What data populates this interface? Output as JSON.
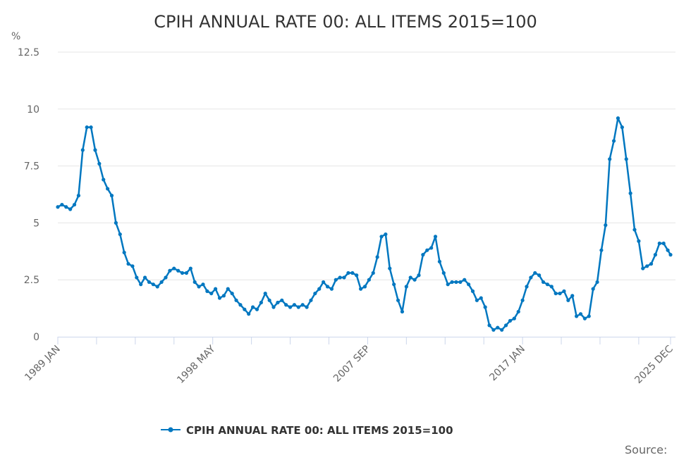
{
  "chart_data": {
    "type": "line",
    "title": "CPIH ANNUAL RATE 00: ALL ITEMS 2015=100",
    "ylabel": "%",
    "xlabel": "",
    "ylim": [
      0,
      12.5
    ],
    "yticks": [
      "0",
      "2.5",
      "5",
      "7.5",
      "10",
      "12.5"
    ],
    "xticks": [
      "1989 JAN",
      "1998 MAY",
      "2007 SEP",
      "2017 JAN",
      "2025 DEC"
    ],
    "grid": true,
    "legend_position": "bottom",
    "color": "#0077c0",
    "series": [
      {
        "name": "CPIH ANNUAL RATE 00: ALL ITEMS 2015=100",
        "x": [
          "1989-01",
          "1989-04",
          "1989-07",
          "1989-10",
          "1990-01",
          "1990-04",
          "1990-07",
          "1990-10",
          "1991-01",
          "1991-04",
          "1991-07",
          "1991-10",
          "1992-01",
          "1992-04",
          "1992-07",
          "1992-10",
          "1993-01",
          "1993-04",
          "1993-07",
          "1993-10",
          "1994-01",
          "1994-04",
          "1994-07",
          "1994-10",
          "1995-01",
          "1995-04",
          "1995-07",
          "1995-10",
          "1996-01",
          "1996-04",
          "1996-07",
          "1996-10",
          "1997-01",
          "1997-04",
          "1997-07",
          "1997-10",
          "1998-01",
          "1998-04",
          "1998-07",
          "1998-10",
          "1999-01",
          "1999-04",
          "1999-07",
          "1999-10",
          "2000-01",
          "2000-04",
          "2000-07",
          "2000-10",
          "2001-01",
          "2001-04",
          "2001-07",
          "2001-10",
          "2002-01",
          "2002-04",
          "2002-07",
          "2002-10",
          "2003-01",
          "2003-04",
          "2003-07",
          "2003-10",
          "2004-01",
          "2004-04",
          "2004-07",
          "2004-10",
          "2005-01",
          "2005-04",
          "2005-07",
          "2005-10",
          "2006-01",
          "2006-04",
          "2006-07",
          "2006-10",
          "2007-01",
          "2007-04",
          "2007-07",
          "2007-10",
          "2008-01",
          "2008-04",
          "2008-07",
          "2008-10",
          "2009-01",
          "2009-04",
          "2009-07",
          "2009-10",
          "2010-01",
          "2010-04",
          "2010-07",
          "2010-10",
          "2011-01",
          "2011-04",
          "2011-07",
          "2011-10",
          "2012-01",
          "2012-04",
          "2012-07",
          "2012-10",
          "2013-01",
          "2013-04",
          "2013-07",
          "2013-10",
          "2014-01",
          "2014-04",
          "2014-07",
          "2014-10",
          "2015-01",
          "2015-04",
          "2015-07",
          "2015-10",
          "2016-01",
          "2016-04",
          "2016-07",
          "2016-10",
          "2017-01",
          "2017-04",
          "2017-07",
          "2017-10",
          "2018-01",
          "2018-04",
          "2018-07",
          "2018-10",
          "2019-01",
          "2019-04",
          "2019-07",
          "2019-10",
          "2020-01",
          "2020-04",
          "2020-07",
          "2020-10",
          "2021-01",
          "2021-04",
          "2021-07",
          "2021-10",
          "2022-01",
          "2022-04",
          "2022-07",
          "2022-10",
          "2023-01",
          "2023-04",
          "2023-07",
          "2023-10",
          "2024-01",
          "2024-04",
          "2024-07",
          "2024-10",
          "2025-01",
          "2025-04",
          "2025-07",
          "2025-10",
          "2025-12"
        ],
        "values": [
          5.7,
          5.8,
          5.7,
          5.6,
          5.8,
          6.2,
          8.2,
          9.2,
          9.2,
          8.2,
          7.6,
          6.9,
          6.5,
          6.2,
          5.0,
          4.5,
          3.7,
          3.2,
          3.1,
          2.6,
          2.3,
          2.6,
          2.4,
          2.3,
          2.2,
          2.4,
          2.6,
          2.9,
          3.0,
          2.9,
          2.8,
          2.8,
          3.0,
          2.4,
          2.2,
          2.3,
          2.0,
          1.9,
          2.1,
          1.7,
          1.8,
          2.1,
          1.9,
          1.6,
          1.4,
          1.2,
          1.0,
          1.3,
          1.2,
          1.5,
          1.9,
          1.6,
          1.3,
          1.5,
          1.6,
          1.4,
          1.3,
          1.4,
          1.3,
          1.4,
          1.3,
          1.6,
          1.9,
          2.1,
          2.4,
          2.2,
          2.1,
          2.5,
          2.6,
          2.6,
          2.8,
          2.8,
          2.7,
          2.1,
          2.2,
          2.5,
          2.8,
          3.5,
          4.4,
          4.5,
          3.0,
          2.3,
          1.6,
          1.1,
          2.2,
          2.6,
          2.5,
          2.7,
          3.6,
          3.8,
          3.9,
          4.4,
          3.3,
          2.8,
          2.3,
          2.4,
          2.4,
          2.4,
          2.5,
          2.3,
          2.0,
          1.6,
          1.7,
          1.3,
          0.5,
          0.3,
          0.4,
          0.3,
          0.5,
          0.7,
          0.8,
          1.1,
          1.6,
          2.2,
          2.6,
          2.8,
          2.7,
          2.4,
          2.3,
          2.2,
          1.9,
          1.9,
          2.0,
          1.6,
          1.8,
          0.9,
          1.0,
          0.8,
          0.9,
          2.1,
          2.4,
          3.8,
          4.9,
          7.8,
          8.6,
          9.6,
          9.2,
          7.8,
          6.3,
          4.7,
          4.2,
          3.0,
          3.1,
          3.2,
          3.6,
          4.1,
          4.1,
          3.8,
          3.6
        ]
      }
    ],
    "source_label": "Source:"
  }
}
